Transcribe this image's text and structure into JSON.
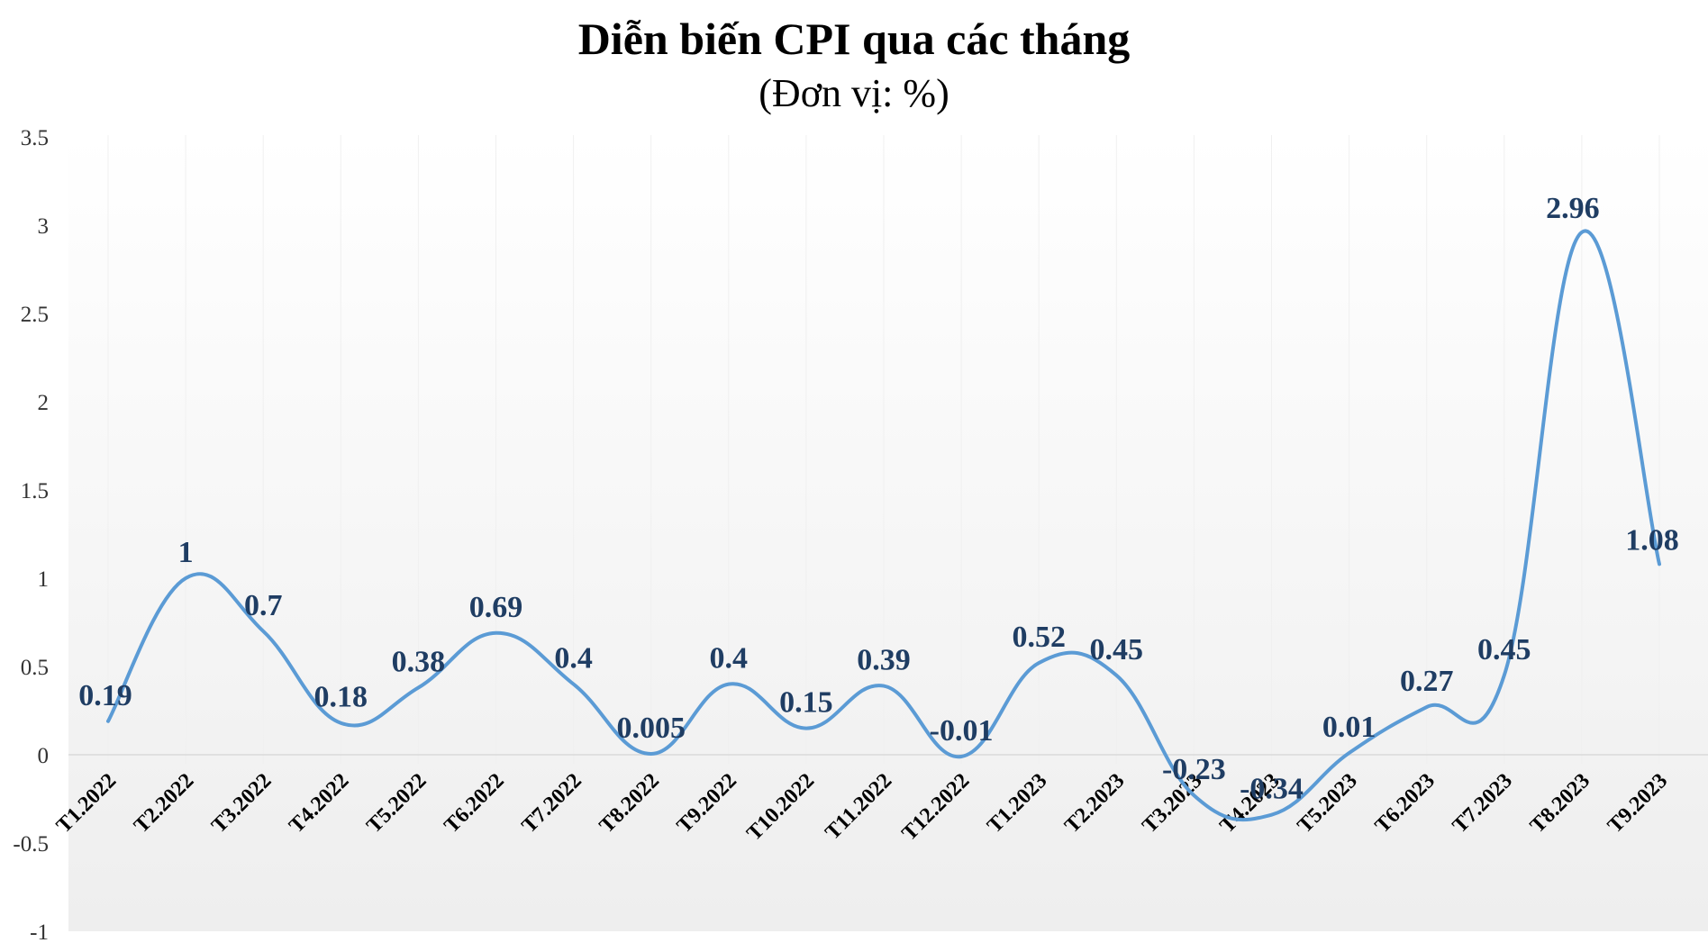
{
  "chart_data": {
    "type": "line",
    "title": "Diễn biến CPI qua các tháng",
    "subtitle": "(Đơn vị: %)",
    "categories": [
      "T1.2022",
      "T2.2022",
      "T3.2022",
      "T4.2022",
      "T5.2022",
      "T6.2022",
      "T7.2022",
      "T8.2022",
      "T9.2022",
      "T10.2022",
      "T11.2022",
      "T12.2022",
      "T1.2023",
      "T2.2023",
      "T3.2023",
      "T4.2023",
      "T5.2023",
      "T6.2023",
      "T7.2023",
      "T8.2023",
      "T9.2023"
    ],
    "series": [
      {
        "values": [
          0.19,
          1,
          0.7,
          0.18,
          0.38,
          0.69,
          0.4,
          0.005,
          0.4,
          0.15,
          0.39,
          -0.01,
          0.52,
          0.45,
          -0.23,
          -0.34,
          0.01,
          0.27,
          0.45,
          2.96,
          1.08
        ],
        "labels": [
          "0.19",
          "1",
          "0.7",
          "0.18",
          "0.38",
          "0.69",
          "0.4",
          "0.005",
          "0.4",
          "0.15",
          "0.39",
          "-0.01",
          "0.52",
          "0.45",
          "-0.23",
          "-0.34",
          "0.01",
          "0.27",
          "0.45",
          "2.96",
          "1.08"
        ],
        "color": "#5b9bd5"
      }
    ],
    "yticks": [
      "3.5",
      "3",
      "2.5",
      "2",
      "1.5",
      "1",
      "0.5",
      "0",
      "-0.5",
      "-1"
    ],
    "ylim": [
      -1,
      3.5
    ],
    "grid": false,
    "label_color": "#1f3d63",
    "background_gradient": [
      "#ffffff",
      "#eeeeee"
    ]
  }
}
